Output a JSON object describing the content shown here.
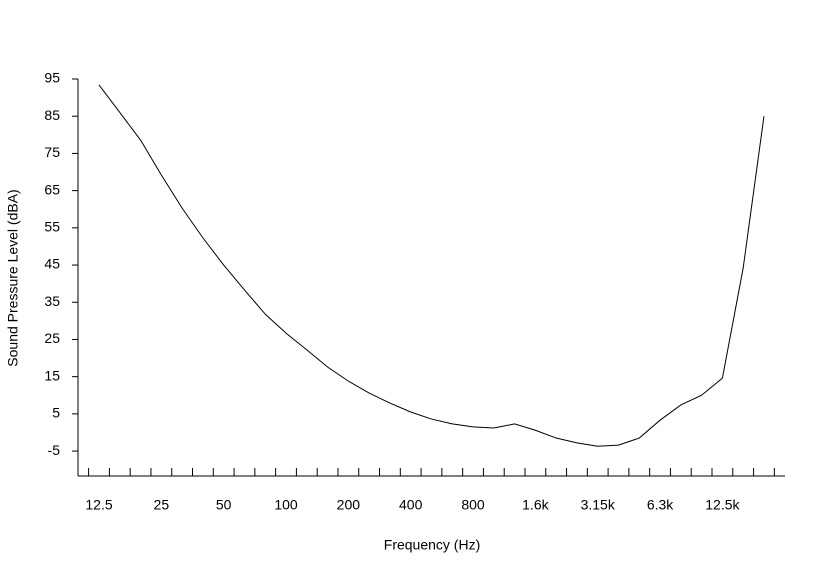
{
  "chart_data": {
    "type": "line",
    "x_label": "Frequency (Hz)",
    "y_label": "Sound Pressure Level (dBA)",
    "categories": [
      "12.5",
      null,
      null,
      "25",
      null,
      null,
      "50",
      null,
      null,
      "100",
      null,
      null,
      "200",
      null,
      null,
      "400",
      null,
      null,
      "800",
      null,
      null,
      "1.6k",
      null,
      null,
      "3.15k",
      null,
      null,
      "6.3k",
      null,
      null,
      "12.5k",
      null,
      null
    ],
    "series": [
      {
        "color": "#000000",
        "values": [
          93.4,
          86,
          78.6,
          69.2,
          60.3,
          52.3,
          45,
          38.3,
          31.8,
          26.7,
          22.2,
          17.6,
          13.8,
          10.6,
          7.9,
          5.5,
          3.6,
          2.3,
          1.5,
          1.2,
          2.3,
          0.6,
          -1.5,
          -2.8,
          -3.7,
          -3.4,
          -1.5,
          3.3,
          7.4,
          10,
          14.6,
          44.2,
          85
        ]
      }
    ],
    "ylim": [
      -11.7,
      95
    ],
    "yticks": [
      95,
      85,
      75,
      65,
      55,
      45,
      35,
      25,
      15,
      5,
      -5
    ]
  }
}
